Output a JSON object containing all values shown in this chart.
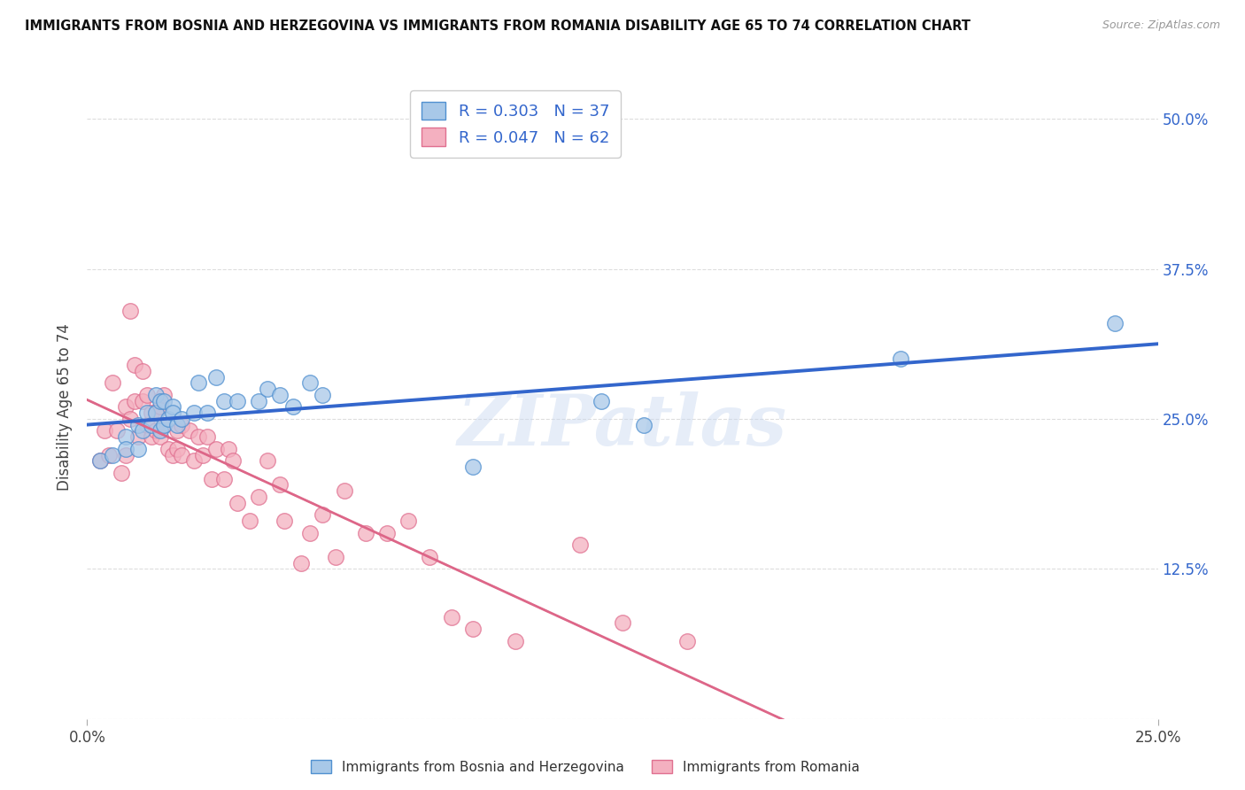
{
  "title": "IMMIGRANTS FROM BOSNIA AND HERZEGOVINA VS IMMIGRANTS FROM ROMANIA DISABILITY AGE 65 TO 74 CORRELATION CHART",
  "source": "Source: ZipAtlas.com",
  "ylabel": "Disability Age 65 to 74",
  "xlim": [
    0.0,
    0.25
  ],
  "ylim": [
    0.0,
    0.52
  ],
  "background_color": "#ffffff",
  "watermark": "ZIPatlas",
  "bosnia_R": 0.303,
  "bosnia_N": 37,
  "romania_R": 0.047,
  "romania_N": 62,
  "bosnia_color": "#a8c8e8",
  "romania_color": "#f4b0c0",
  "bosnia_edge_color": "#5090d0",
  "romania_edge_color": "#e07090",
  "bosnia_line_color": "#3366cc",
  "romania_line_color": "#dd6688",
  "bosnia_x": [
    0.003,
    0.006,
    0.009,
    0.009,
    0.012,
    0.012,
    0.013,
    0.014,
    0.015,
    0.016,
    0.016,
    0.017,
    0.017,
    0.018,
    0.018,
    0.019,
    0.02,
    0.02,
    0.021,
    0.022,
    0.025,
    0.026,
    0.028,
    0.03,
    0.032,
    0.035,
    0.04,
    0.042,
    0.045,
    0.048,
    0.052,
    0.055,
    0.09,
    0.12,
    0.13,
    0.19,
    0.24
  ],
  "bosnia_y": [
    0.215,
    0.22,
    0.235,
    0.225,
    0.245,
    0.225,
    0.24,
    0.255,
    0.245,
    0.27,
    0.255,
    0.265,
    0.24,
    0.265,
    0.245,
    0.25,
    0.26,
    0.255,
    0.245,
    0.25,
    0.255,
    0.28,
    0.255,
    0.285,
    0.265,
    0.265,
    0.265,
    0.275,
    0.27,
    0.26,
    0.28,
    0.27,
    0.21,
    0.265,
    0.245,
    0.3,
    0.33
  ],
  "romania_x": [
    0.003,
    0.004,
    0.005,
    0.006,
    0.007,
    0.008,
    0.009,
    0.009,
    0.01,
    0.01,
    0.011,
    0.011,
    0.012,
    0.013,
    0.013,
    0.014,
    0.014,
    0.015,
    0.015,
    0.016,
    0.016,
    0.017,
    0.017,
    0.018,
    0.018,
    0.019,
    0.02,
    0.021,
    0.021,
    0.022,
    0.022,
    0.024,
    0.025,
    0.026,
    0.027,
    0.028,
    0.029,
    0.03,
    0.032,
    0.033,
    0.034,
    0.035,
    0.038,
    0.04,
    0.042,
    0.045,
    0.046,
    0.05,
    0.052,
    0.055,
    0.058,
    0.06,
    0.065,
    0.07,
    0.075,
    0.08,
    0.085,
    0.09,
    0.1,
    0.115,
    0.125,
    0.14
  ],
  "romania_y": [
    0.215,
    0.24,
    0.22,
    0.28,
    0.24,
    0.205,
    0.26,
    0.22,
    0.34,
    0.25,
    0.295,
    0.265,
    0.235,
    0.29,
    0.265,
    0.27,
    0.245,
    0.255,
    0.235,
    0.255,
    0.24,
    0.26,
    0.235,
    0.27,
    0.245,
    0.225,
    0.22,
    0.24,
    0.225,
    0.245,
    0.22,
    0.24,
    0.215,
    0.235,
    0.22,
    0.235,
    0.2,
    0.225,
    0.2,
    0.225,
    0.215,
    0.18,
    0.165,
    0.185,
    0.215,
    0.195,
    0.165,
    0.13,
    0.155,
    0.17,
    0.135,
    0.19,
    0.155,
    0.155,
    0.165,
    0.135,
    0.085,
    0.075,
    0.065,
    0.145,
    0.08,
    0.065
  ],
  "ytick_positions": [
    0.125,
    0.25,
    0.375,
    0.5
  ],
  "ytick_labels": [
    "12.5%",
    "25.0%",
    "37.5%",
    "50.0%"
  ],
  "xtick_positions": [
    0.0,
    0.25
  ],
  "xtick_labels": [
    "0.0%",
    "25.0%"
  ],
  "grid_lines": [
    0.0,
    0.125,
    0.25,
    0.375,
    0.5
  ]
}
